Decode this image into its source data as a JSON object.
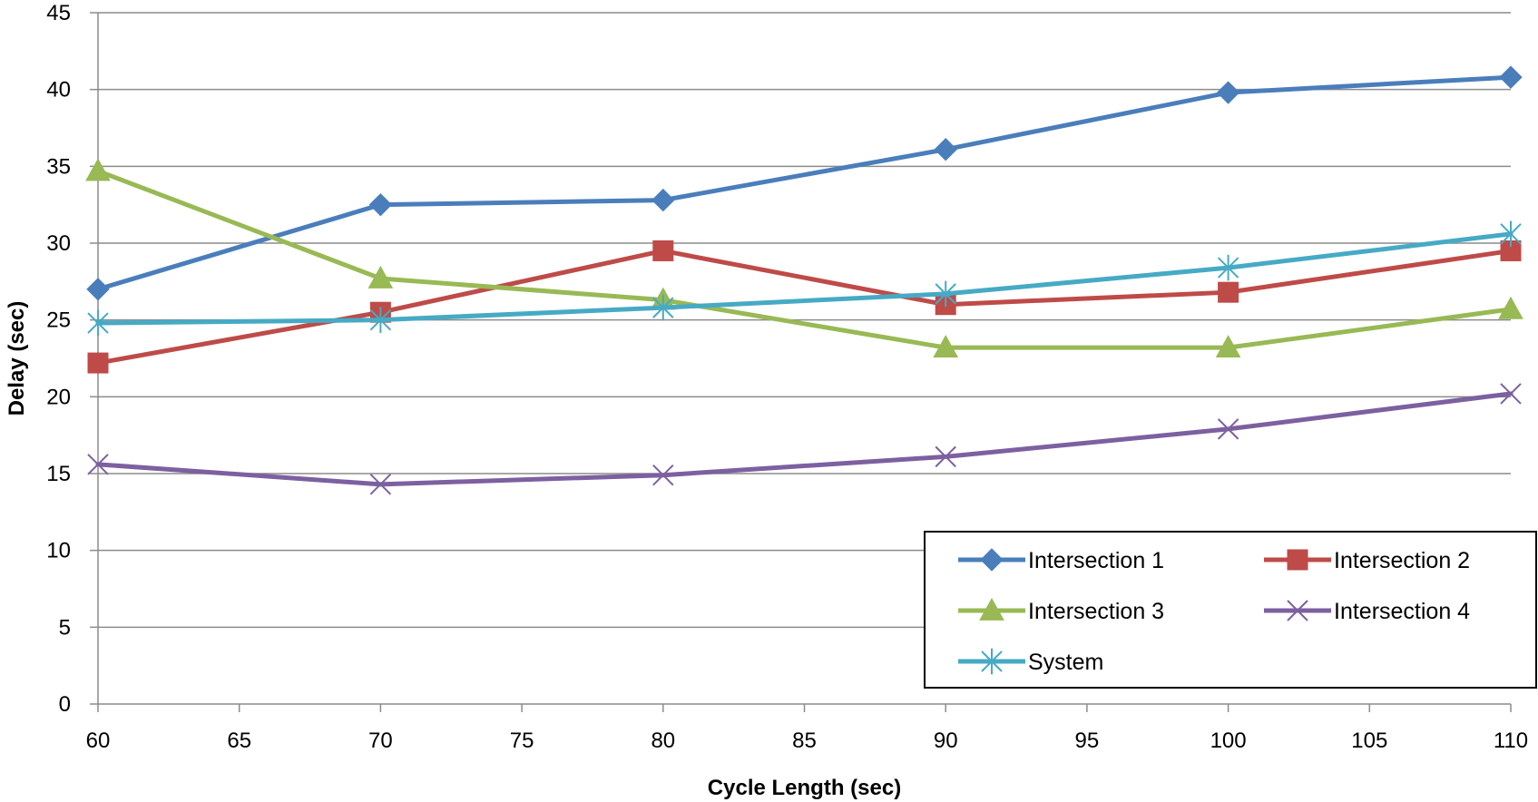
{
  "chart_data": {
    "type": "line",
    "title": "",
    "xlabel": "Cycle Length (sec)",
    "ylabel": "Delay (sec)",
    "xlim": [
      60,
      110
    ],
    "ylim": [
      0,
      45
    ],
    "x_ticks": [
      60,
      65,
      70,
      75,
      80,
      85,
      90,
      95,
      100,
      105,
      110
    ],
    "y_ticks": [
      0,
      5,
      10,
      15,
      20,
      25,
      30,
      35,
      40,
      45
    ],
    "grid": "horizontal",
    "legend_position": "bottom-right",
    "x": [
      60,
      70,
      80,
      90,
      100,
      110
    ],
    "series": [
      {
        "name": "Intersection 1",
        "color": "#4a7ebb",
        "marker": "diamond",
        "values": [
          27.0,
          32.5,
          32.8,
          36.1,
          39.8,
          40.8
        ]
      },
      {
        "name": "Intersection 2",
        "color": "#be4b48",
        "marker": "square",
        "values": [
          22.2,
          25.5,
          29.5,
          26.0,
          26.8,
          29.5
        ]
      },
      {
        "name": "Intersection 3",
        "color": "#98b954",
        "marker": "triangle",
        "values": [
          34.7,
          27.7,
          26.3,
          23.2,
          23.2,
          25.7
        ]
      },
      {
        "name": "Intersection 4",
        "color": "#7d60a0",
        "marker": "x",
        "values": [
          15.6,
          14.3,
          14.9,
          16.1,
          17.9,
          20.2
        ]
      },
      {
        "name": "System",
        "color": "#46aac5",
        "marker": "star",
        "values": [
          24.8,
          25.0,
          25.8,
          26.7,
          28.4,
          30.6
        ]
      }
    ]
  }
}
